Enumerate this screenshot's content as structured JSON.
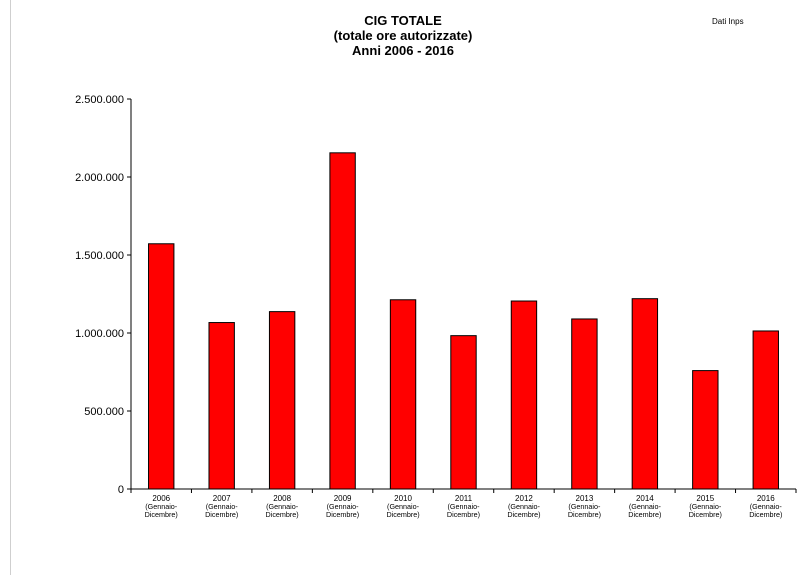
{
  "chart_data": {
    "type": "bar",
    "title": [
      "CIG TOTALE",
      "(totale ore autorizzate)",
      "Anni 2006 - 2016"
    ],
    "source_note": "Dati Inps",
    "categories": [
      {
        "year": "2006",
        "line2": "(Gennaio-",
        "line3": "Dicembre)"
      },
      {
        "year": "2007",
        "line2": "(Gennaio-",
        "line3": "Dicembre)"
      },
      {
        "year": "2008",
        "line2": "(Gennaio-",
        "line3": "Dicembre)"
      },
      {
        "year": "2009",
        "line2": "(Gennaio-",
        "line3": "Dicembre)"
      },
      {
        "year": "2010",
        "line2": "(Gennaio-",
        "line3": "Dicembre)"
      },
      {
        "year": "2011",
        "line2": "(Gennaio-",
        "line3": "Dicembre)"
      },
      {
        "year": "2012",
        "line2": "(Gennaio-",
        "line3": "Dicembre)"
      },
      {
        "year": "2013",
        "line2": "(Gennaio-",
        "line3": "Dicembre)"
      },
      {
        "year": "2014",
        "line2": "(Gennaio-",
        "line3": "Dicembre)"
      },
      {
        "year": "2015",
        "line2": "(Gennaio-",
        "line3": "Dicembre)"
      },
      {
        "year": "2016",
        "line2": "(Gennaio-",
        "line3": "Dicembre)"
      }
    ],
    "values": [
      1572000,
      1067000,
      1137000,
      2155000,
      1213000,
      983000,
      1205000,
      1090000,
      1220000,
      759000,
      1013000
    ],
    "ylim": [
      0,
      2500000
    ],
    "yticks": [
      0,
      500000,
      1000000,
      1500000,
      2000000,
      2500000
    ],
    "ytick_labels": [
      "0",
      "500.000",
      "1.000.000",
      "1.500.000",
      "2.000.000",
      "2.500.000"
    ],
    "grid": false,
    "legend": "none",
    "colors": {
      "bar_fill": "#ff0000",
      "bar_stroke": "#000000",
      "axis": "#000000"
    }
  }
}
